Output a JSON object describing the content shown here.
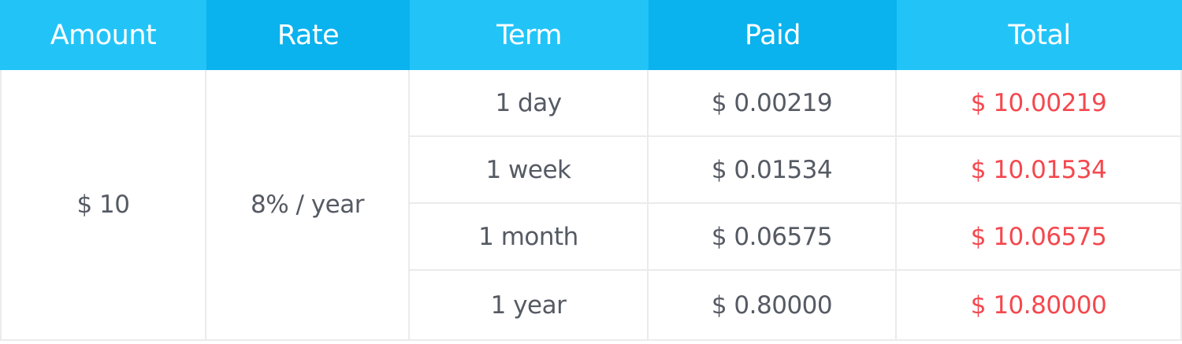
{
  "header": {
    "amount": "Amount",
    "rate": "Rate",
    "term": "Term",
    "paid": "Paid",
    "total": "Total"
  },
  "amount": "$ 10",
  "rate": "8% / year",
  "rows": [
    {
      "term": "1 day",
      "paid": "$ 0.00219",
      "total": "$ 10.00219"
    },
    {
      "term": "1 week",
      "paid": "$ 0.01534",
      "total": "$ 10.01534"
    },
    {
      "term": "1 month",
      "paid": "$ 0.06575",
      "total": "$ 10.06575"
    },
    {
      "term": "1 year",
      "paid": "$ 0.80000",
      "total": "$ 10.80000"
    }
  ],
  "colors": {
    "header_light": "#22c4f8",
    "header_dark": "#0ab2ee",
    "text": "#555a63",
    "total": "#f4484e",
    "border": "#ebebeb"
  }
}
